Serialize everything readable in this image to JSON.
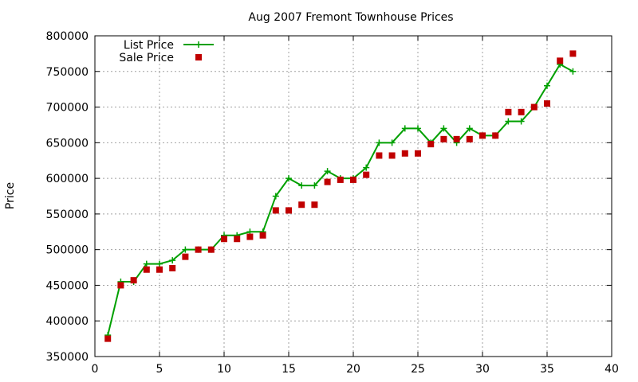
{
  "chart_data": {
    "type": "line",
    "title": "Aug 2007 Fremont Townhouse Prices",
    "xlabel": "",
    "ylabel": "Price",
    "xlim": [
      0,
      40
    ],
    "ylim": [
      350000,
      800000
    ],
    "x_ticks": [
      0,
      5,
      10,
      15,
      20,
      25,
      30,
      35,
      40
    ],
    "y_ticks": [
      350000,
      400000,
      450000,
      500000,
      550000,
      600000,
      650000,
      700000,
      750000,
      800000
    ],
    "x_tick_labels": [
      "0",
      "5",
      "10",
      "15",
      "20",
      "25",
      "30",
      "35",
      "40"
    ],
    "y_tick_labels": [
      "350000",
      "400000",
      "450000",
      "500000",
      "550000",
      "600000",
      "650000",
      "700000",
      "750000",
      "800000"
    ],
    "grid": true,
    "legend_position": "top-left",
    "series": [
      {
        "name": "List Price",
        "style": "line-with-plus-markers",
        "color": "#00a000",
        "x": [
          1,
          2,
          3,
          4,
          5,
          6,
          7,
          8,
          9,
          10,
          11,
          12,
          13,
          14,
          15,
          16,
          17,
          18,
          19,
          20,
          21,
          22,
          23,
          24,
          25,
          26,
          27,
          28,
          29,
          30,
          31,
          32,
          33,
          34,
          35,
          36,
          37
        ],
        "y": [
          380000,
          455000,
          455000,
          480000,
          480000,
          485000,
          500000,
          500000,
          500000,
          520000,
          520000,
          525000,
          525000,
          575000,
          600000,
          590000,
          590000,
          610000,
          600000,
          600000,
          615000,
          650000,
          650000,
          670000,
          670000,
          650000,
          670000,
          650000,
          670000,
          660000,
          660000,
          680000,
          680000,
          700000,
          730000,
          760000,
          750000
        ]
      },
      {
        "name": "Sale Price",
        "style": "square-markers",
        "color": "#c00000",
        "x": [
          1,
          2,
          3,
          4,
          5,
          6,
          7,
          8,
          9,
          10,
          11,
          12,
          13,
          14,
          15,
          16,
          17,
          18,
          19,
          20,
          21,
          22,
          23,
          24,
          25,
          26,
          27,
          28,
          29,
          30,
          31,
          32,
          33,
          34,
          35,
          36,
          37
        ],
        "y": [
          375000,
          450000,
          457000,
          472000,
          472000,
          474000,
          490000,
          500000,
          500000,
          515000,
          515000,
          518000,
          520000,
          555000,
          555000,
          563000,
          563000,
          595000,
          598000,
          598000,
          605000,
          632000,
          632000,
          635000,
          635000,
          648000,
          655000,
          655000,
          655000,
          660000,
          660000,
          693000,
          693000,
          700000,
          705000,
          765000,
          775000
        ]
      }
    ]
  }
}
